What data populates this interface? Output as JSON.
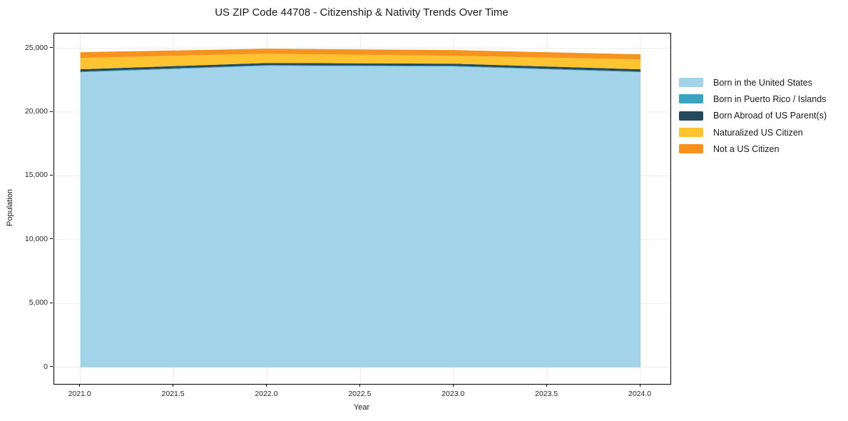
{
  "title": "US ZIP Code 44708 - Citizenship & Nativity Trends Over Time",
  "axes": {
    "xlabel": "Year",
    "ylabel": "Population"
  },
  "chart_data": {
    "type": "area",
    "stacked": true,
    "title": "US ZIP Code 44708 - Citizenship & Nativity Trends Over Time",
    "xlabel": "Year",
    "ylabel": "Population",
    "x": [
      2021,
      2022,
      2023,
      2024
    ],
    "series": [
      {
        "name": "Born in the United States",
        "color": "#A3D3E8",
        "values": [
          23120,
          23620,
          23565,
          23120
        ]
      },
      {
        "name": "Born in Puerto Rico / Islands",
        "color": "#39A3C0",
        "values": [
          55,
          55,
          55,
          55
        ]
      },
      {
        "name": "Born Abroad of US Parent(s)",
        "color": "#24485C",
        "values": [
          170,
          170,
          170,
          170
        ]
      },
      {
        "name": "Naturalized US Citizen",
        "color": "#FDC330",
        "values": [
          895,
          725,
          615,
          785
        ]
      },
      {
        "name": "Not a US Citizen",
        "color": "#F6931E",
        "values": [
          445,
          390,
          450,
          390
        ]
      }
    ],
    "totals": [
      24685,
      24960,
      24855,
      24520
    ],
    "xlim": [
      2020.86,
      2024.16
    ],
    "ylim": [
      -1300,
      26150
    ],
    "x_ticks": [
      2021.0,
      2021.5,
      2022.0,
      2022.5,
      2023.0,
      2023.5,
      2024.0
    ],
    "x_tick_labels": [
      "2021.0",
      "2021.5",
      "2022.0",
      "2022.5",
      "2023.0",
      "2023.5",
      "2024.0"
    ],
    "y_ticks": [
      0,
      5000,
      10000,
      15000,
      20000,
      25000
    ],
    "y_tick_labels": [
      "0",
      "5,000",
      "10,000",
      "15,000",
      "20,000",
      "25,000"
    ],
    "grid": true,
    "grid_color": "#ececec",
    "frame_color": "#000000",
    "legend_position": "outside-right"
  }
}
